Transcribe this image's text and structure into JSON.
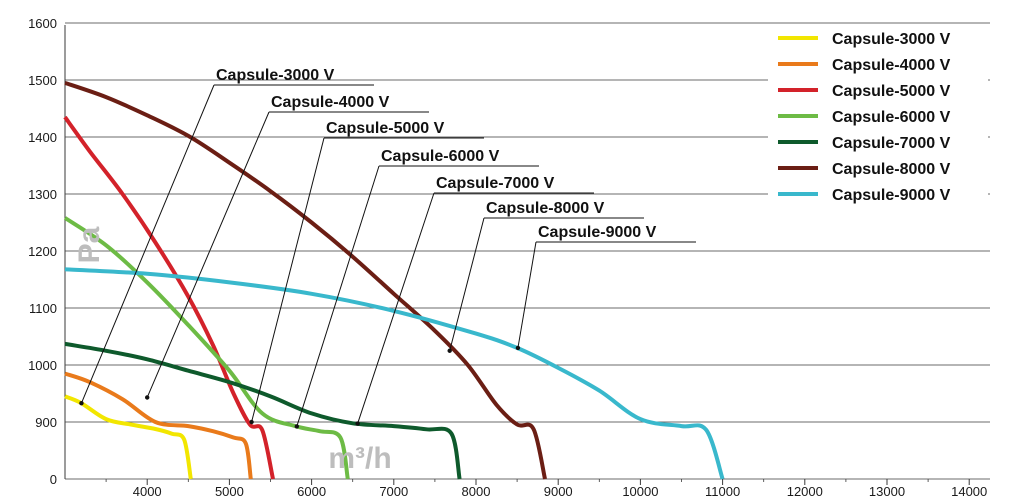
{
  "chart_data": {
    "type": "line",
    "ylabel": "Pa",
    "xlabel": "m³/h",
    "xlim": [
      3000,
      14000
    ],
    "ylim": [
      0,
      1600
    ],
    "x_ticks": [
      "4000",
      "5000",
      "6000",
      "7000",
      "8000",
      "9000",
      "10000",
      "11000",
      "12000",
      "13000",
      "14000"
    ],
    "y_ticks": [
      "0",
      "900",
      "1000",
      "1100",
      "1200",
      "1300",
      "1400",
      "1500",
      "1600"
    ],
    "grid": true,
    "legend_position": "top-right",
    "series": [
      {
        "name": "Capsule-3000 V",
        "color": "#f2e600",
        "points": [
          [
            3000,
            945
          ],
          [
            3200,
            933
          ],
          [
            3500,
            905
          ],
          [
            3800,
            860
          ],
          [
            4100,
            790
          ],
          [
            4300,
            715
          ],
          [
            4450,
            620
          ],
          [
            4530,
            0
          ]
        ]
      },
      {
        "name": "Capsule-4000 V",
        "color": "#e97a1b",
        "points": [
          [
            3000,
            985
          ],
          [
            3300,
            970
          ],
          [
            3700,
            940
          ],
          [
            4100,
            900
          ],
          [
            4500,
            835
          ],
          [
            4800,
            755
          ],
          [
            5050,
            655
          ],
          [
            5200,
            560
          ],
          [
            5260,
            0
          ]
        ]
      },
      {
        "name": "Capsule-5000 V",
        "color": "#d3222a",
        "points": [
          [
            3000,
            1435
          ],
          [
            3300,
            1375
          ],
          [
            3700,
            1300
          ],
          [
            4100,
            1215
          ],
          [
            4500,
            1120
          ],
          [
            4800,
            1035
          ],
          [
            5050,
            950
          ],
          [
            5250,
            860
          ],
          [
            5400,
            770
          ],
          [
            5530,
            0
          ]
        ]
      },
      {
        "name": "Capsule-6000 V",
        "color": "#6dbb45",
        "points": [
          [
            3000,
            1258
          ],
          [
            3500,
            1210
          ],
          [
            4000,
            1145
          ],
          [
            4500,
            1070
          ],
          [
            5000,
            990
          ],
          [
            5400,
            915
          ],
          [
            5800,
            835
          ],
          [
            6100,
            755
          ],
          [
            6350,
            655
          ],
          [
            6440,
            0
          ]
        ]
      },
      {
        "name": "Capsule-7000 V",
        "color": "#0e5a2c",
        "points": [
          [
            3000,
            1037
          ],
          [
            3500,
            1025
          ],
          [
            4000,
            1010
          ],
          [
            4500,
            990
          ],
          [
            5000,
            970
          ],
          [
            5500,
            945
          ],
          [
            6000,
            915
          ],
          [
            6500,
            880
          ],
          [
            7000,
            835
          ],
          [
            7400,
            785
          ],
          [
            7700,
            720
          ],
          [
            7800,
            0
          ]
        ]
      },
      {
        "name": "Capsule-8000 V",
        "color": "#6b1e14",
        "points": [
          [
            3000,
            1495
          ],
          [
            3500,
            1470
          ],
          [
            4000,
            1438
          ],
          [
            4500,
            1402
          ],
          [
            5000,
            1355
          ],
          [
            5500,
            1305
          ],
          [
            6000,
            1250
          ],
          [
            6500,
            1190
          ],
          [
            7000,
            1125
          ],
          [
            7500,
            1060
          ],
          [
            7900,
            1000
          ],
          [
            8250,
            930
          ],
          [
            8500,
            860
          ],
          [
            8700,
            790
          ],
          [
            8840,
            0
          ]
        ]
      },
      {
        "name": "Capsule-9000 V",
        "color": "#39b8cc",
        "points": [
          [
            3000,
            1168
          ],
          [
            4000,
            1160
          ],
          [
            5000,
            1145
          ],
          [
            6000,
            1125
          ],
          [
            7000,
            1095
          ],
          [
            8000,
            1055
          ],
          [
            8500,
            1030
          ],
          [
            9000,
            995
          ],
          [
            9500,
            955
          ],
          [
            10000,
            905
          ],
          [
            10500,
            835
          ],
          [
            10800,
            775
          ],
          [
            11000,
            0
          ]
        ]
      }
    ],
    "callouts": [
      {
        "label": "Capsule-3000 V",
        "x": 3200,
        "y": 933
      },
      {
        "label": "Capsule-4000 V",
        "x": 4000,
        "y": 943
      },
      {
        "label": "Capsule-5000 V",
        "x": 5270,
        "y": 900
      },
      {
        "label": "Capsule-6000 V",
        "x": 5820,
        "y": 830
      },
      {
        "label": "Capsule-7000 V",
        "x": 6560,
        "y": 875
      },
      {
        "label": "Capsule-8000 V",
        "x": 7680,
        "y": 1025
      },
      {
        "label": "Capsule-9000 V",
        "x": 8510,
        "y": 1030
      }
    ]
  }
}
